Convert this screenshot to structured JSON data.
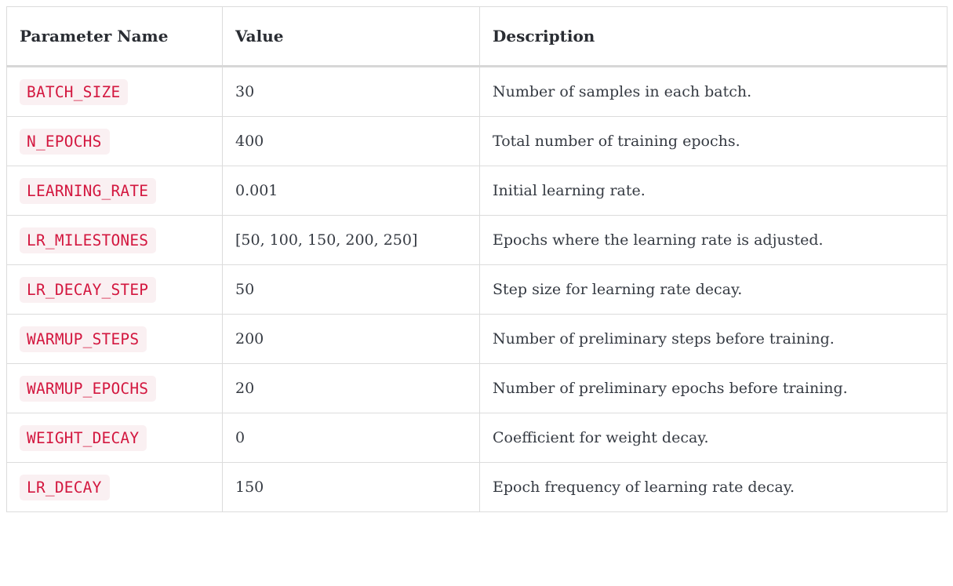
{
  "table": {
    "headers": {
      "name": "Parameter Name",
      "value": "Value",
      "description": "Description"
    },
    "rows": [
      {
        "name": "BATCH_SIZE",
        "value": "30",
        "description": "Number of samples in each batch."
      },
      {
        "name": "N_EPOCHS",
        "value": "400",
        "description": "Total number of training epochs."
      },
      {
        "name": "LEARNING_RATE",
        "value": "0.001",
        "description": "Initial learning rate."
      },
      {
        "name": "LR_MILESTONES",
        "value": "[50, 100, 150, 200, 250]",
        "description": "Epochs where the learning rate is adjusted."
      },
      {
        "name": "LR_DECAY_STEP",
        "value": "50",
        "description": "Step size for learning rate decay."
      },
      {
        "name": "WARMUP_STEPS",
        "value": "200",
        "description": "Number of preliminary steps before training."
      },
      {
        "name": "WARMUP_EPOCHS",
        "value": "20",
        "description": "Number of preliminary epochs before training."
      },
      {
        "name": "WEIGHT_DECAY",
        "value": "0",
        "description": "Coefficient for weight decay."
      },
      {
        "name": "LR_DECAY",
        "value": "150",
        "description": "Epoch frequency of learning rate decay."
      }
    ]
  },
  "colors": {
    "code_text": "#d3173f",
    "code_background": "#faf0f2",
    "border": "#dcdcdc",
    "text": "#2b2f36"
  }
}
